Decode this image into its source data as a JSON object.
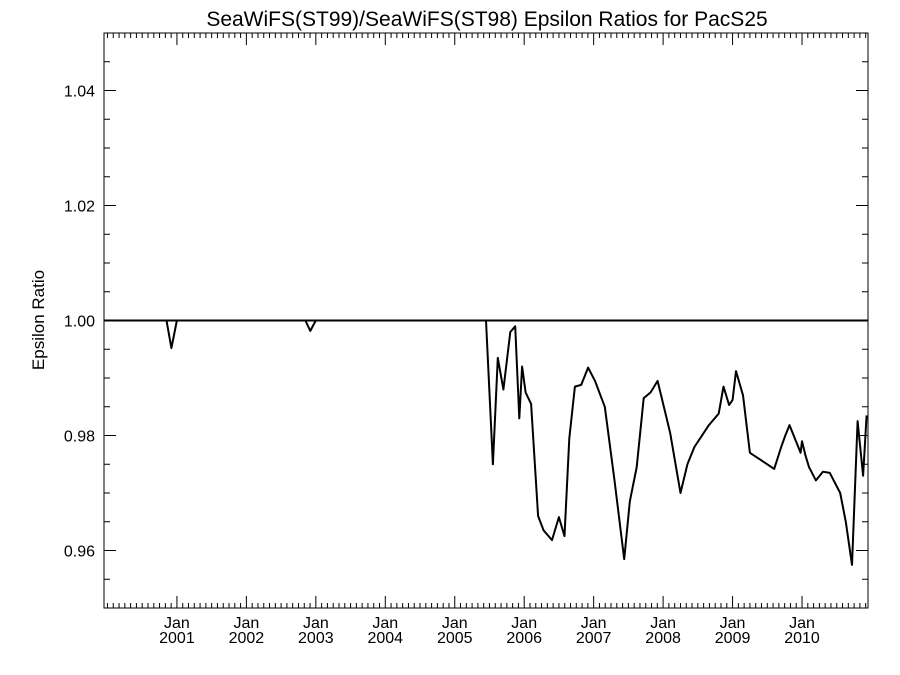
{
  "chart_data": {
    "type": "line",
    "title": "SeaWiFS(ST99)/SeaWiFS(ST98)  Epsilon Ratios for PacS25",
    "xlabel": "",
    "ylabel": "Epsilon Ratio",
    "xlim": [
      1999.95,
      2010.95
    ],
    "ylim": [
      0.95,
      1.05
    ],
    "yticks": [
      {
        "value": 0.96,
        "label": "0.96"
      },
      {
        "value": 0.98,
        "label": "0.98"
      },
      {
        "value": 1.0,
        "label": "1.00"
      },
      {
        "value": 1.02,
        "label": "1.02"
      },
      {
        "value": 1.04,
        "label": "1.04"
      }
    ],
    "xticks": [
      {
        "value": 2001,
        "month": "Jan",
        "year": "2001"
      },
      {
        "value": 2002,
        "month": "Jan",
        "year": "2002"
      },
      {
        "value": 2003,
        "month": "Jan",
        "year": "2003"
      },
      {
        "value": 2004,
        "month": "Jan",
        "year": "2004"
      },
      {
        "value": 2005,
        "month": "Jan",
        "year": "2005"
      },
      {
        "value": 2006,
        "month": "Jan",
        "year": "2006"
      },
      {
        "value": 2007,
        "month": "Jan",
        "year": "2007"
      },
      {
        "value": 2008,
        "month": "Jan",
        "year": "2008"
      },
      {
        "value": 2009,
        "month": "Jan",
        "year": "2009"
      },
      {
        "value": 2010,
        "month": "Jan",
        "year": "2010"
      }
    ],
    "reference_line": 1.0,
    "series": [
      {
        "x": [
          1999.95,
          2000.85,
          2000.92,
          2001.0,
          2002.85,
          2002.92,
          2003.0,
          2005.45,
          2005.55,
          2005.62,
          2005.7,
          2005.8,
          2005.87,
          2005.93,
          2005.97,
          2006.02,
          2006.1,
          2006.2,
          2006.28,
          2006.4,
          2006.5,
          2006.58,
          2006.65,
          2006.73,
          2006.82,
          2006.92,
          2007.02,
          2007.16,
          2007.3,
          2007.44,
          2007.52,
          2007.62,
          2007.72,
          2007.82,
          2007.92,
          2008.1,
          2008.25,
          2008.35,
          2008.45,
          2008.55,
          2008.66,
          2008.8,
          2008.87,
          2008.95,
          2009.0,
          2009.05,
          2009.15,
          2009.25,
          2009.6,
          2009.7,
          2009.76,
          2009.82,
          2009.98,
          2010.0,
          2010.05,
          2010.1,
          2010.2,
          2010.3,
          2010.4,
          2010.55,
          2010.63,
          2010.72,
          2010.8,
          2010.88,
          2010.93
        ],
        "y": [
          1.0,
          1.0,
          0.9952,
          1.0,
          1.0,
          0.9982,
          1.0,
          1.0,
          0.975,
          0.9935,
          0.988,
          0.998,
          0.999,
          0.983,
          0.992,
          0.9875,
          0.9855,
          0.966,
          0.9635,
          0.9618,
          0.9658,
          0.9625,
          0.9795,
          0.9885,
          0.9888,
          0.9918,
          0.9895,
          0.985,
          0.9722,
          0.9585,
          0.9685,
          0.9745,
          0.9865,
          0.9875,
          0.9895,
          0.9805,
          0.97,
          0.975,
          0.978,
          0.9798,
          0.9818,
          0.9838,
          0.9885,
          0.9853,
          0.9862,
          0.9912,
          0.987,
          0.977,
          0.9742,
          0.978,
          0.98,
          0.9818,
          0.977,
          0.979,
          0.9765,
          0.9745,
          0.9722,
          0.9737,
          0.9735,
          0.97,
          0.965,
          0.9575,
          0.9825,
          0.973,
          0.9835
        ]
      }
    ],
    "grid": false,
    "colors": {
      "line": "#000000",
      "axes": "#000000",
      "background": "#ffffff"
    }
  }
}
